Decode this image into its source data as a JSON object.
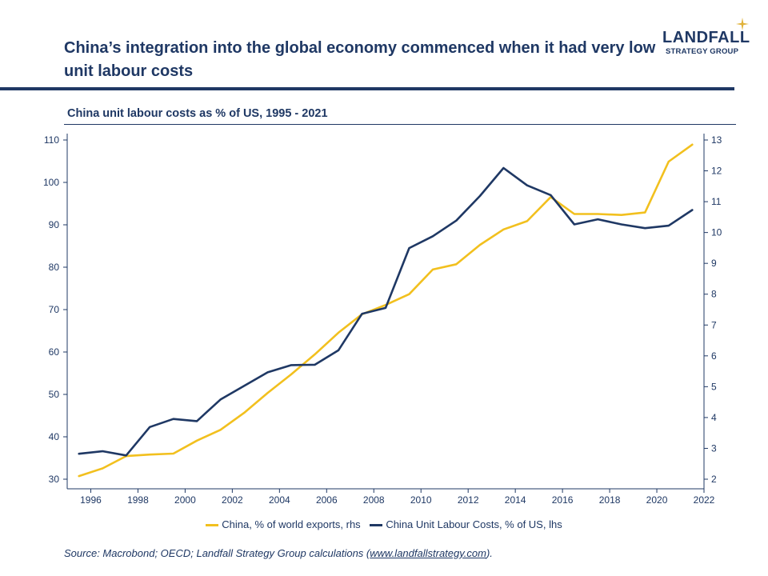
{
  "header": {
    "title": "China’s integration into the global economy commenced when it had very low unit labour costs",
    "logo_main": "LANDFALL",
    "logo_sub": "STRATEGY GROUP",
    "logo_icon": "compass-star-icon"
  },
  "colors": {
    "navy": "#1f3864",
    "gold": "#f2c01e"
  },
  "chart_data": {
    "type": "line",
    "title": "China unit labour costs as % of US, 1995 - 2021",
    "x": [
      1995.5,
      1996.5,
      1997.5,
      1998.5,
      1999.5,
      2000.5,
      2001.5,
      2002.5,
      2003.5,
      2004.5,
      2005.5,
      2006.5,
      2007.5,
      2008.5,
      2009.5,
      2010.5,
      2011.5,
      2012.5,
      2013.5,
      2014.5,
      2015.5,
      2016.5,
      2017.5,
      2018.5,
      2019.5,
      2020.5,
      2021.5
    ],
    "x_ticks": [
      "1996",
      "1998",
      "2000",
      "2002",
      "2004",
      "2006",
      "2008",
      "2010",
      "2012",
      "2014",
      "2016",
      "2018",
      "2020",
      "2022"
    ],
    "xlim": [
      1995,
      2022
    ],
    "y_left": {
      "lim": [
        30,
        110
      ],
      "ticks": [
        "30",
        "40",
        "50",
        "60",
        "70",
        "80",
        "90",
        "100",
        "110"
      ]
    },
    "y_right": {
      "lim": [
        2,
        13
      ],
      "ticks": [
        "2",
        "3",
        "4",
        "5",
        "6",
        "7",
        "8",
        "9",
        "10",
        "11",
        "12",
        "13"
      ]
    },
    "series": [
      {
        "name": "China, % of world exports, rhs",
        "axis": "right",
        "color": "#f2c01e",
        "values": [
          2.1,
          2.35,
          2.75,
          2.8,
          2.83,
          3.25,
          3.6,
          4.15,
          4.8,
          5.4,
          6.05,
          6.75,
          7.35,
          7.65,
          8.0,
          8.8,
          8.97,
          9.6,
          10.1,
          10.37,
          11.15,
          10.6,
          10.6,
          10.57,
          10.65,
          12.3,
          12.85
        ]
      },
      {
        "name": "China Unit Labour Costs, % of US, lhs",
        "axis": "left",
        "color": "#1f3864",
        "values": [
          36.0,
          36.6,
          35.6,
          42.3,
          44.2,
          43.7,
          48.8,
          52.0,
          55.2,
          56.9,
          57.0,
          60.4,
          69.0,
          70.4,
          84.5,
          87.3,
          91.0,
          96.8,
          103.4,
          99.3,
          97.0,
          90.1,
          91.3,
          90.1,
          89.2,
          89.8,
          93.5
        ]
      }
    ],
    "legend": "bottom-center",
    "grid": false
  },
  "source": {
    "text": "Source: Macrobond; OECD; Landfall Strategy Group calculations (",
    "link": "www.landfallstrategy.com",
    "suffix": ")."
  }
}
